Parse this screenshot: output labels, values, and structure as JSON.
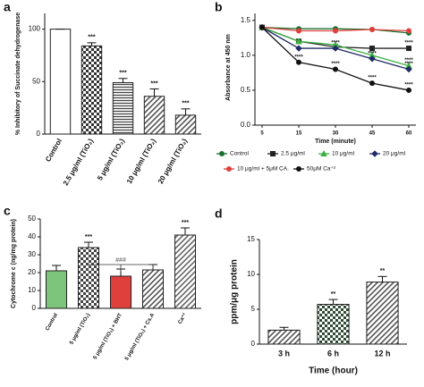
{
  "chart_data": [
    {
      "type": "bar",
      "panel": "a",
      "y_label": "% Inhibitory of Succinate dehydrogenase",
      "categories": [
        "Control",
        "2.5 μg/ml (TiO₂)",
        "5 μg/ml (TiO₂)",
        "10 μg/ml (TiO₂)",
        "20 μg/ml (TiO₂)"
      ],
      "values": [
        100,
        84,
        49,
        36,
        18
      ],
      "errors": [
        0,
        3,
        4,
        7,
        6
      ],
      "annotations": [
        null,
        "***",
        "***",
        "***",
        "***"
      ],
      "colors": [
        "#ffffff",
        "#333333",
        "#444444",
        "#555555",
        "#555555"
      ],
      "patterns": [
        "solid",
        "check",
        "hgrid",
        "diagonal",
        "diagonal"
      ],
      "ylim": [
        0,
        115
      ],
      "yticks": [
        0,
        50,
        100
      ]
    },
    {
      "type": "line",
      "panel": "b",
      "y_label": "Absorbance at 450 nm",
      "x_label": "Time (minute)",
      "categories": [
        "5",
        "15",
        "30",
        "45",
        "60"
      ],
      "series": [
        {
          "name": "Control",
          "color": "#1a6e2e",
          "marker": "circle",
          "values": [
            1.4,
            1.38,
            1.38,
            1.37,
            1.32
          ],
          "annotations": [
            null,
            null,
            null,
            null,
            null
          ]
        },
        {
          "name": "2.5 μg/ml",
          "color": "#222222",
          "marker": "square",
          "values": [
            1.4,
            1.2,
            1.12,
            1.1,
            1.1
          ],
          "annotations": [
            null,
            null,
            null,
            null,
            "****"
          ]
        },
        {
          "name": "10 μg/ml",
          "color": "#3cb043",
          "marker": "triangle",
          "values": [
            1.4,
            1.2,
            1.15,
            1.0,
            0.85
          ],
          "annotations": [
            null,
            null,
            null,
            null,
            "****"
          ]
        },
        {
          "name": "20 μg/ml",
          "color": "#1f2a66",
          "marker": "diamond",
          "values": [
            1.4,
            1.1,
            1.1,
            0.95,
            0.8
          ],
          "annotations": [
            null,
            null,
            "****",
            "****",
            "****"
          ]
        },
        {
          "name": "10 μg/ml + 5μM CA.",
          "color": "#e0403c",
          "marker": "circle",
          "values": [
            1.4,
            1.35,
            1.35,
            1.37,
            1.35
          ],
          "annotations": [
            null,
            null,
            null,
            null,
            null
          ]
        },
        {
          "name": "50μM Ca⁺²",
          "color": "#111111",
          "marker": "circle",
          "values": [
            1.4,
            0.9,
            0.8,
            0.6,
            0.5
          ],
          "annotations": [
            null,
            "****",
            "****",
            "****",
            "****"
          ]
        }
      ],
      "ylim": [
        0,
        1.6
      ],
      "yticks": [
        {
          "value": 0,
          "label": "0.0"
        },
        0.5,
        {
          "value": 1,
          "label": "1.0"
        },
        1.5
      ]
    },
    {
      "type": "bar",
      "panel": "c",
      "y_label": "Cytochrome c (ng/mg protein)",
      "categories": [
        "Control",
        "5 μg/ml (TiO₂)",
        "5 μg/ml (TiO₂) + BHT",
        "5 μg/ml (TiO₂) + Cs.A",
        "Ca⁺²"
      ],
      "values": [
        21,
        34,
        18,
        21.5,
        41
      ],
      "errors": [
        3,
        3,
        4,
        3,
        4
      ],
      "annotations": [
        null,
        "***",
        null,
        null,
        "***"
      ],
      "bracket_label": "###",
      "colors": [
        "#7dc47d",
        "#444444",
        "#e0403c",
        "#555555",
        "#666666"
      ],
      "patterns": [
        "solid",
        "check",
        "solid",
        "diagonal",
        "diagonal"
      ],
      "ylim": [
        0,
        50
      ],
      "yticks": [
        0,
        10,
        20,
        30,
        40,
        50
      ]
    },
    {
      "type": "bar",
      "panel": "d",
      "y_label": "ppm/μg protein",
      "x_label": "Time (hour)",
      "categories": [
        "3 h",
        "6 h",
        "12 h"
      ],
      "values": [
        2,
        5.7,
        8.9
      ],
      "errors": [
        0.4,
        0.7,
        0.8
      ],
      "annotations": [
        null,
        "**",
        "**"
      ],
      "colors": [
        "#555555",
        "#2d4a33",
        "#555555"
      ],
      "patterns": [
        "diagonal",
        "check",
        "diagonal"
      ],
      "ylim": [
        0,
        15
      ],
      "yticks": [
        0,
        5,
        10,
        15
      ]
    }
  ]
}
